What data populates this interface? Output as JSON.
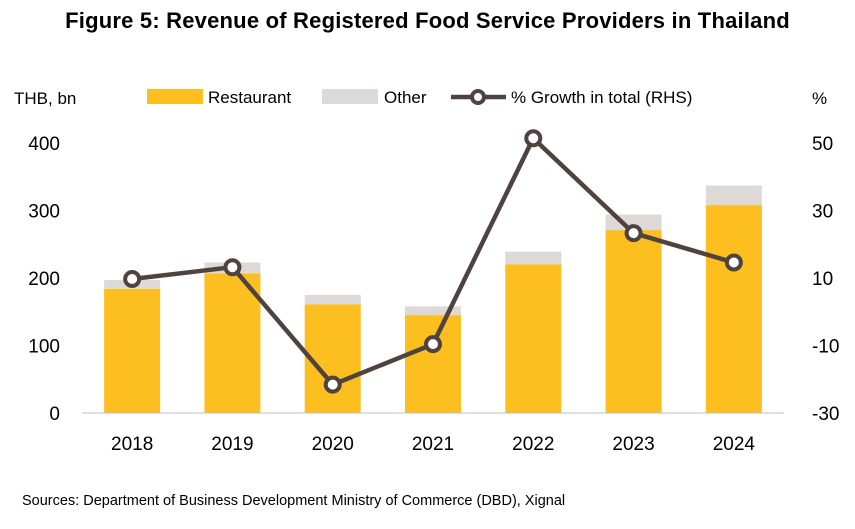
{
  "chart_data": {
    "type": "bar",
    "title": "Figure 5: Revenue of Registered Food Service Providers in Thailand",
    "categories": [
      "2018",
      "2019",
      "2020",
      "2021",
      "2022",
      "2023",
      "2024"
    ],
    "series": [
      {
        "name": "Restaurant",
        "kind": "stacked-bar",
        "axis": "left",
        "color": "#FDBE1F",
        "values": [
          184,
          207,
          161,
          145,
          220,
          271,
          308
        ]
      },
      {
        "name": "Other",
        "kind": "stacked-bar",
        "axis": "left",
        "color": "#DDD9D7",
        "values": [
          13,
          16,
          14,
          13,
          19,
          23,
          29
        ]
      },
      {
        "name": "% Growth in total (RHS)",
        "kind": "line-markers",
        "axis": "right",
        "color": "#4F4340",
        "values": [
          9.7,
          13.2,
          -21.6,
          -9.6,
          51.4,
          23.3,
          14.6
        ]
      }
    ],
    "left_axis": {
      "label": "THB, bn",
      "ylim": [
        0,
        400
      ],
      "ticks": [
        0,
        100,
        200,
        300,
        400
      ]
    },
    "right_axis": {
      "label": "%",
      "ylim": [
        -30,
        50
      ],
      "ticks": [
        -30,
        -10,
        10,
        30,
        50
      ]
    },
    "legend": {
      "position": "top"
    },
    "grid": false,
    "source": "Sources:  Department of Business Development Ministry of Commerce (DBD), Xignal"
  }
}
